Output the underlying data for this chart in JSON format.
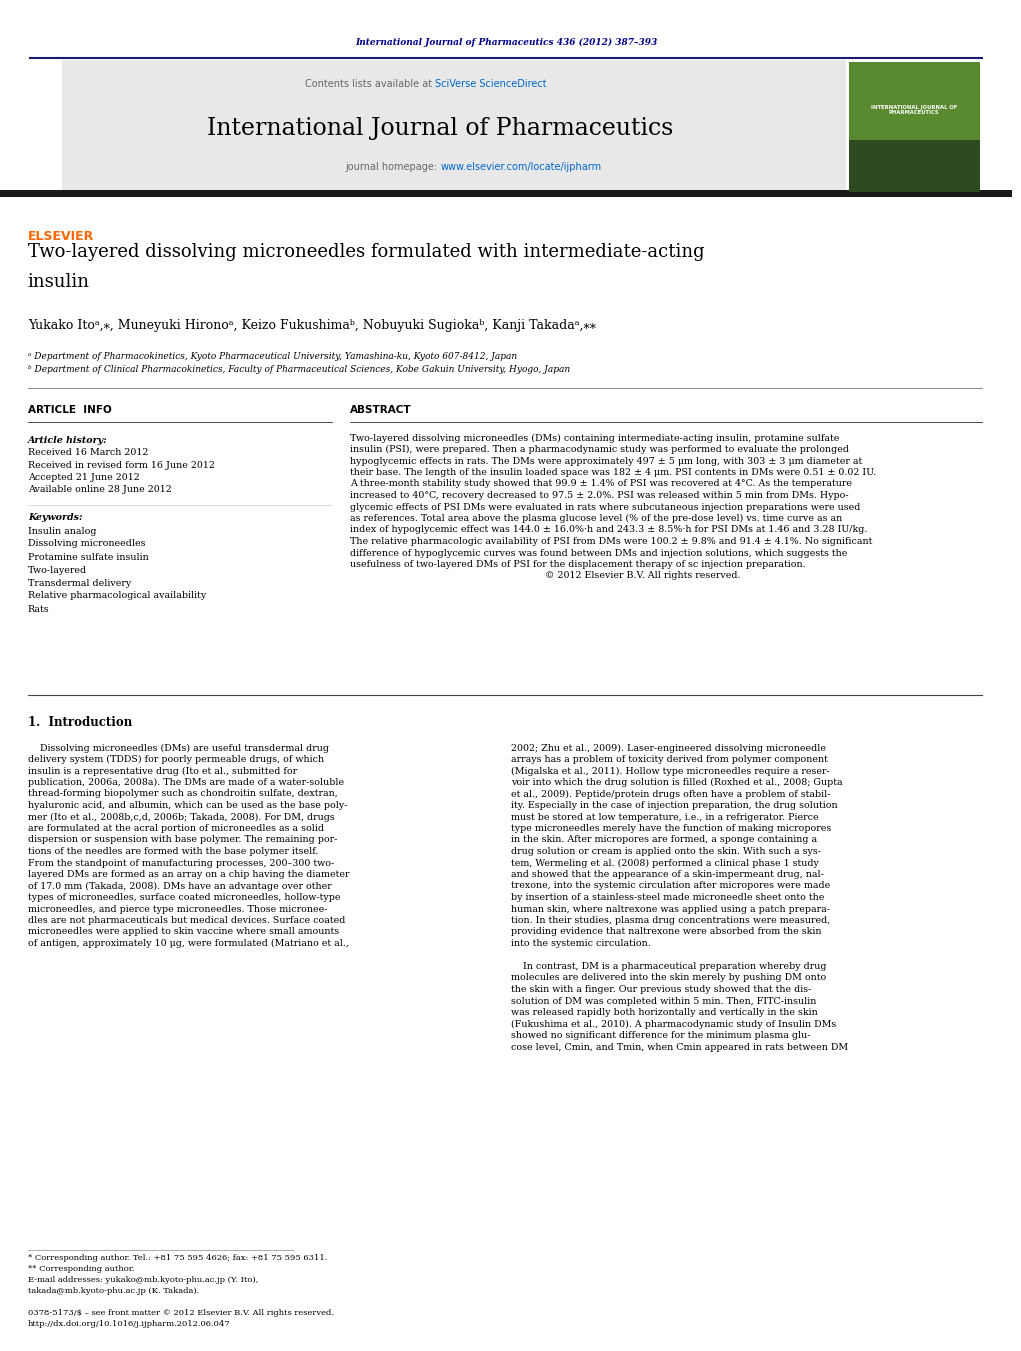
{
  "page_width": 10.21,
  "page_height": 13.51,
  "background_color": "#ffffff",
  "top_header_text": "International Journal of Pharmaceutics 436 (2012) 387–393",
  "top_header_color": "#00008B",
  "top_bar_color": "#1a1a6e",
  "header_bg_color": "#e8e8e8",
  "journal_name": "International Journal of Pharmaceutics",
  "contents_text": "Contents lists available at ",
  "sciverse_text": "SciVerse ScienceDirect",
  "homepage_text": "journal homepage: ",
  "homepage_url": "www.elsevier.com/locate/ijpharm",
  "link_color": "#0066cc",
  "article_title_line1": "Two-layered dissolving microneedles formulated with intermediate-acting",
  "article_title_line2": "insulin",
  "authors": "Yukako Itoᵃ,⁎, Muneyuki Hironoᵃ, Keizo Fukushimaᵇ, Nobuyuki Sugiokaᵇ, Kanji Takadaᵃ,⁎⁎",
  "affil_a": "ᵃ Department of Pharmacokinetics, Kyoto Pharmaceutical University, Yamashina-ku, Kyoto 607-8412, Japan",
  "affil_b": "ᵇ Department of Clinical Pharmacokinetics, Faculty of Pharmaceutical Sciences, Kobe Gakuin University, Hyogo, Japan",
  "article_info_header": "ARTICLE  INFO",
  "abstract_header": "ABSTRACT",
  "article_history_label": "Article history:",
  "received": "Received 16 March 2012",
  "received_revised": "Received in revised form 16 June 2012",
  "accepted": "Accepted 21 June 2012",
  "available": "Available online 28 June 2012",
  "keywords_label": "Keywords:",
  "keywords": [
    "Insulin analog",
    "Dissolving microneedles",
    "Protamine sulfate insulin",
    "Two-layered",
    "Transdermal delivery",
    "Relative pharmacological availability",
    "Rats"
  ],
  "abstract_lines": [
    "Two-layered dissolving microneedles (DMs) containing intermediate-acting insulin, protamine sulfate",
    "insulin (PSI), were prepared. Then a pharmacodynamic study was performed to evaluate the prolonged",
    "hypoglycemic effects in rats. The DMs were approximately 497 ± 5 μm long, with 303 ± 3 μm diameter at",
    "their base. The length of the insulin loaded space was 182 ± 4 μm. PSI contents in DMs were 0.51 ± 0.02 IU.",
    "A three-month stability study showed that 99.9 ± 1.4% of PSI was recovered at 4°C. As the temperature",
    "increased to 40°C, recovery decreased to 97.5 ± 2.0%. PSI was released within 5 min from DMs. Hypo-",
    "glycemic effects of PSI DMs were evaluated in rats where subcutaneous injection preparations were used",
    "as references. Total area above the plasma glucose level (% of the pre-dose level) vs. time curve as an",
    "index of hypoglycemic effect was 144.0 ± 16.0%·h and 243.3 ± 8.5%·h for PSI DMs at 1.46 and 3.28 IU/kg.",
    "The relative pharmacologic availability of PSI from DMs were 100.2 ± 9.8% and 91.4 ± 4.1%. No significant",
    "difference of hypoglycemic curves was found between DMs and injection solutions, which suggests the",
    "usefulness of two-layered DMs of PSI for the displacement therapy of sc injection preparation.",
    "                                                                 © 2012 Elsevier B.V. All rights reserved."
  ],
  "intro_header": "1.  Introduction",
  "intro_left_lines": [
    "    Dissolving microneedles (DMs) are useful transdermal drug",
    "delivery system (TDDS) for poorly permeable drugs, of which",
    "insulin is a representative drug (Ito et al., submitted for",
    "publication, 2006a, 2008a). The DMs are made of a water-soluble",
    "thread-forming biopolymer such as chondroitin sulfate, dextran,",
    "hyaluronic acid, and albumin, which can be used as the base poly-",
    "mer (Ito et al., 2008b,c,d, 2006b; Takada, 2008). For DM, drugs",
    "are formulated at the acral portion of microneedles as a solid",
    "dispersion or suspension with base polymer. The remaining por-",
    "tions of the needles are formed with the base polymer itself.",
    "From the standpoint of manufacturing processes, 200–300 two-",
    "layered DMs are formed as an array on a chip having the diameter",
    "of 17.0 mm (Takada, 2008). DMs have an advantage over other",
    "types of microneedles, surface coated microneedles, hollow-type",
    "microneedles, and pierce type microneedles. Those micronee-",
    "dles are not pharmaceuticals but medical devices. Surface coated",
    "microneedles were applied to skin vaccine where small amounts",
    "of antigen, approximately 10 μg, were formulated (Matriano et al.,"
  ],
  "intro_right_lines": [
    "2002; Zhu et al., 2009). Laser-engineered dissolving microneedle",
    "arrays has a problem of toxicity derived from polymer component",
    "(Migalska et al., 2011). Hollow type microneedles require a reser-",
    "voir into which the drug solution is filled (Roxhed et al., 2008; Gupta",
    "et al., 2009). Peptide/protein drugs often have a problem of stabil-",
    "ity. Especially in the case of injection preparation, the drug solution",
    "must be stored at low temperature, i.e., in a refrigerator. Pierce",
    "type microneedles merely have the function of making micropores",
    "in the skin. After micropores are formed, a sponge containing a",
    "drug solution or cream is applied onto the skin. With such a sys-",
    "tem, Wermeling et al. (2008) performed a clinical phase 1 study",
    "and showed that the appearance of a skin-impermeant drug, nal-",
    "trexone, into the systemic circulation after micropores were made",
    "by insertion of a stainless-steel made microneedle sheet onto the",
    "human skin, where naltrexone was applied using a patch prepara-",
    "tion. In their studies, plasma drug concentrations were measured,",
    "providing evidence that naltrexone were absorbed from the skin",
    "into the systemic circulation.",
    "",
    "    In contrast, DM is a pharmaceutical preparation whereby drug",
    "molecules are delivered into the skin merely by pushing DM onto",
    "the skin with a finger. Our previous study showed that the dis-",
    "solution of DM was completed within 5 min. Then, FITC-insulin",
    "was released rapidly both horizontally and vertically in the skin",
    "(Fukushima et al., 2010). A pharmacodynamic study of Insulin DMs",
    "showed no significant difference for the minimum plasma glu-",
    "cose level, Cmin, and Tmin, when Cmin appeared in rats between DM"
  ],
  "footnote1": "* Corresponding author. Tel.: +81 75 595 4626; fax: +81 75 595 6311.",
  "footnote2": "** Corresponding author.",
  "footnote3": "E-mail addresses: yukako@mb.kyoto-phu.ac.jp (Y. Ito),",
  "footnote4": "takada@mb.kyoto-phu.ac.jp (K. Takada).",
  "footnote5": "0378-5173/$ – see front matter © 2012 Elsevier B.V. All rights reserved.",
  "footnote6": "http://dx.doi.org/10.1016/j.ijpharm.2012.06.047",
  "divider_color": "#1a1a6e",
  "text_color": "#000000",
  "elsevier_color": "#FF6600"
}
